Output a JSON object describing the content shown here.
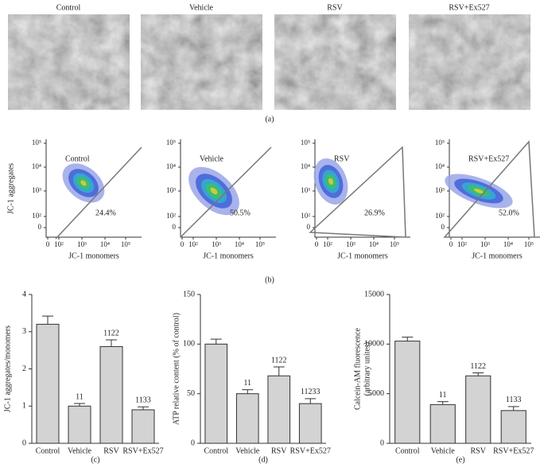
{
  "micrographs": {
    "labels": [
      "Control",
      "Vehicle",
      "RSV",
      "RSV+Ex527"
    ],
    "panel_label": "(a)"
  },
  "flow": {
    "xlabel": "JC-1 monomers",
    "ylabel": "JC-1 aggregates",
    "xtick_labels": [
      "0",
      "10²",
      "10³",
      "10⁴",
      "10⁵"
    ],
    "ytick_labels": [
      "10⁵",
      "10⁴",
      "10³",
      "10²",
      "0"
    ],
    "panels": [
      {
        "label": "Control",
        "percent": "24.4%"
      },
      {
        "label": "Vehicle",
        "percent": "50.5%"
      },
      {
        "label": "RSV",
        "percent": "26.9%"
      },
      {
        "label": "RSV+Ex527",
        "percent": "52.0%"
      }
    ],
    "panel_label": "(b)"
  },
  "chart_data": [
    {
      "type": "bar",
      "ylabel": "JC-1 aggregates/monomers",
      "panel_label": "(c)",
      "categories": [
        "Control",
        "Vehicle",
        "RSV",
        "RSV+Ex527"
      ],
      "values": [
        3.2,
        1.0,
        2.6,
        0.9
      ],
      "errors": [
        0.22,
        0.07,
        0.18,
        0.08
      ],
      "annotations": [
        null,
        "11",
        "1122",
        "1133"
      ],
      "color": "#d3d3d3",
      "ylim": [
        0,
        4
      ],
      "yticks": [
        0,
        1,
        2,
        3,
        4
      ]
    },
    {
      "type": "bar",
      "ylabel": "ATP relative content (% of control)",
      "panel_label": "(d)",
      "categories": [
        "Control",
        "Vehicle",
        "RSV",
        "RSV+Ex527"
      ],
      "values": [
        100,
        50,
        68,
        40
      ],
      "errors": [
        5,
        4,
        9,
        5
      ],
      "annotations": [
        null,
        "11",
        "1122",
        "11233"
      ],
      "color": "#d3d3d3",
      "ylim": [
        0,
        150
      ],
      "yticks": [
        0,
        50,
        100,
        150
      ]
    },
    {
      "type": "bar",
      "ylabel": [
        "Calcein-AM fluorescence",
        "(arbitrary unites)"
      ],
      "panel_label": "(e)",
      "categories": [
        "Control",
        "Vehicle",
        "RSV",
        "RSV+Ex527"
      ],
      "values": [
        10300,
        3900,
        6800,
        3300
      ],
      "errors": [
        400,
        300,
        300,
        400
      ],
      "annotations": [
        null,
        "11",
        "1122",
        "1133"
      ],
      "color": "#d3d3d3",
      "ylim": [
        0,
        15000
      ],
      "yticks": [
        0,
        5000,
        10000,
        15000
      ]
    }
  ]
}
